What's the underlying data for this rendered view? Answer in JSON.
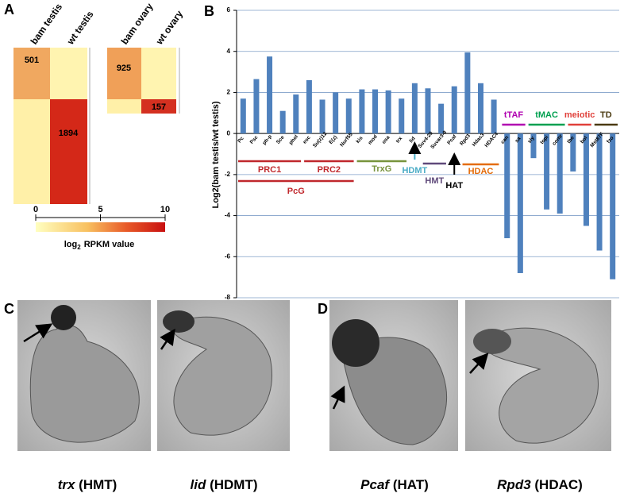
{
  "panels": {
    "letters": [
      "A",
      "B",
      "C",
      "D"
    ],
    "heatmap": {
      "columns": [
        "bam testis",
        "wt testis",
        "bam ovary",
        "wt ovary"
      ],
      "counts": [
        501,
        1894,
        925,
        157
      ],
      "colorbar_ticks": [
        0,
        5,
        10
      ],
      "colorbar_label": {
        "base": "log",
        "sub": "2",
        "rest": "RPKM value"
      }
    },
    "photos": [
      {
        "gene": "trx",
        "tag": "(HMT)"
      },
      {
        "gene": "lid",
        "tag": "(HDMT)"
      },
      {
        "gene": "Pcaf",
        "tag": "(HAT)"
      },
      {
        "gene": "Rpd3",
        "tag": "(HDAC)"
      }
    ]
  },
  "chart_data": {
    "type": "bar",
    "ylabel": "Log2(bam testis/wt testis)",
    "categories": [
      "Pc",
      "Psc",
      "ph-p",
      "Sce",
      "phol",
      "esc",
      "Su(z)12",
      "E(z)",
      "Nurf55",
      "kis",
      "mod",
      "osa",
      "trx",
      "lid",
      "Suv4-20",
      "Suvar3-9",
      "Pcaf",
      "Rpd3",
      "Hdac3",
      "HDAC4",
      "can",
      "sa",
      "sly",
      "topi",
      "comr",
      "tbe",
      "bol",
      "Mst87F",
      "fzo"
    ],
    "values": [
      1.7,
      2.65,
      3.75,
      1.1,
      1.9,
      2.6,
      1.65,
      2.0,
      1.7,
      2.15,
      2.15,
      2.1,
      1.7,
      2.45,
      2.2,
      1.45,
      2.3,
      3.95,
      2.45,
      1.65,
      -5.1,
      -6.8,
      -1.2,
      -3.7,
      -3.9,
      -1.85,
      -4.5,
      -5.7,
      -7.1
    ],
    "color": "#4f81bd",
    "ylim": [
      -8,
      6
    ],
    "yticks": [
      -8,
      -6,
      -4,
      -2,
      0,
      2,
      4,
      6
    ],
    "grid": true,
    "groups": [
      {
        "label": "PRC1",
        "color": "#c0282d"
      },
      {
        "label": "PRC2",
        "color": "#c0282d"
      },
      {
        "label": "PcG",
        "color": "#c0282d"
      },
      {
        "label": "TrxG",
        "color": "#77933c"
      },
      {
        "label": "HDMT",
        "color": "#4bacc6"
      },
      {
        "label": "HMT",
        "color": "#604a7b"
      },
      {
        "label": "HAT",
        "color": "#000000"
      },
      {
        "label": "HDAC",
        "color": "#e46c0a"
      },
      {
        "label": "tTAF",
        "color": "#b000b0"
      },
      {
        "label": "tMAC",
        "color": "#00a050"
      },
      {
        "label": "meiotic",
        "color": "#e0403a"
      },
      {
        "label": "TD",
        "color": "#4a3a10"
      }
    ]
  }
}
